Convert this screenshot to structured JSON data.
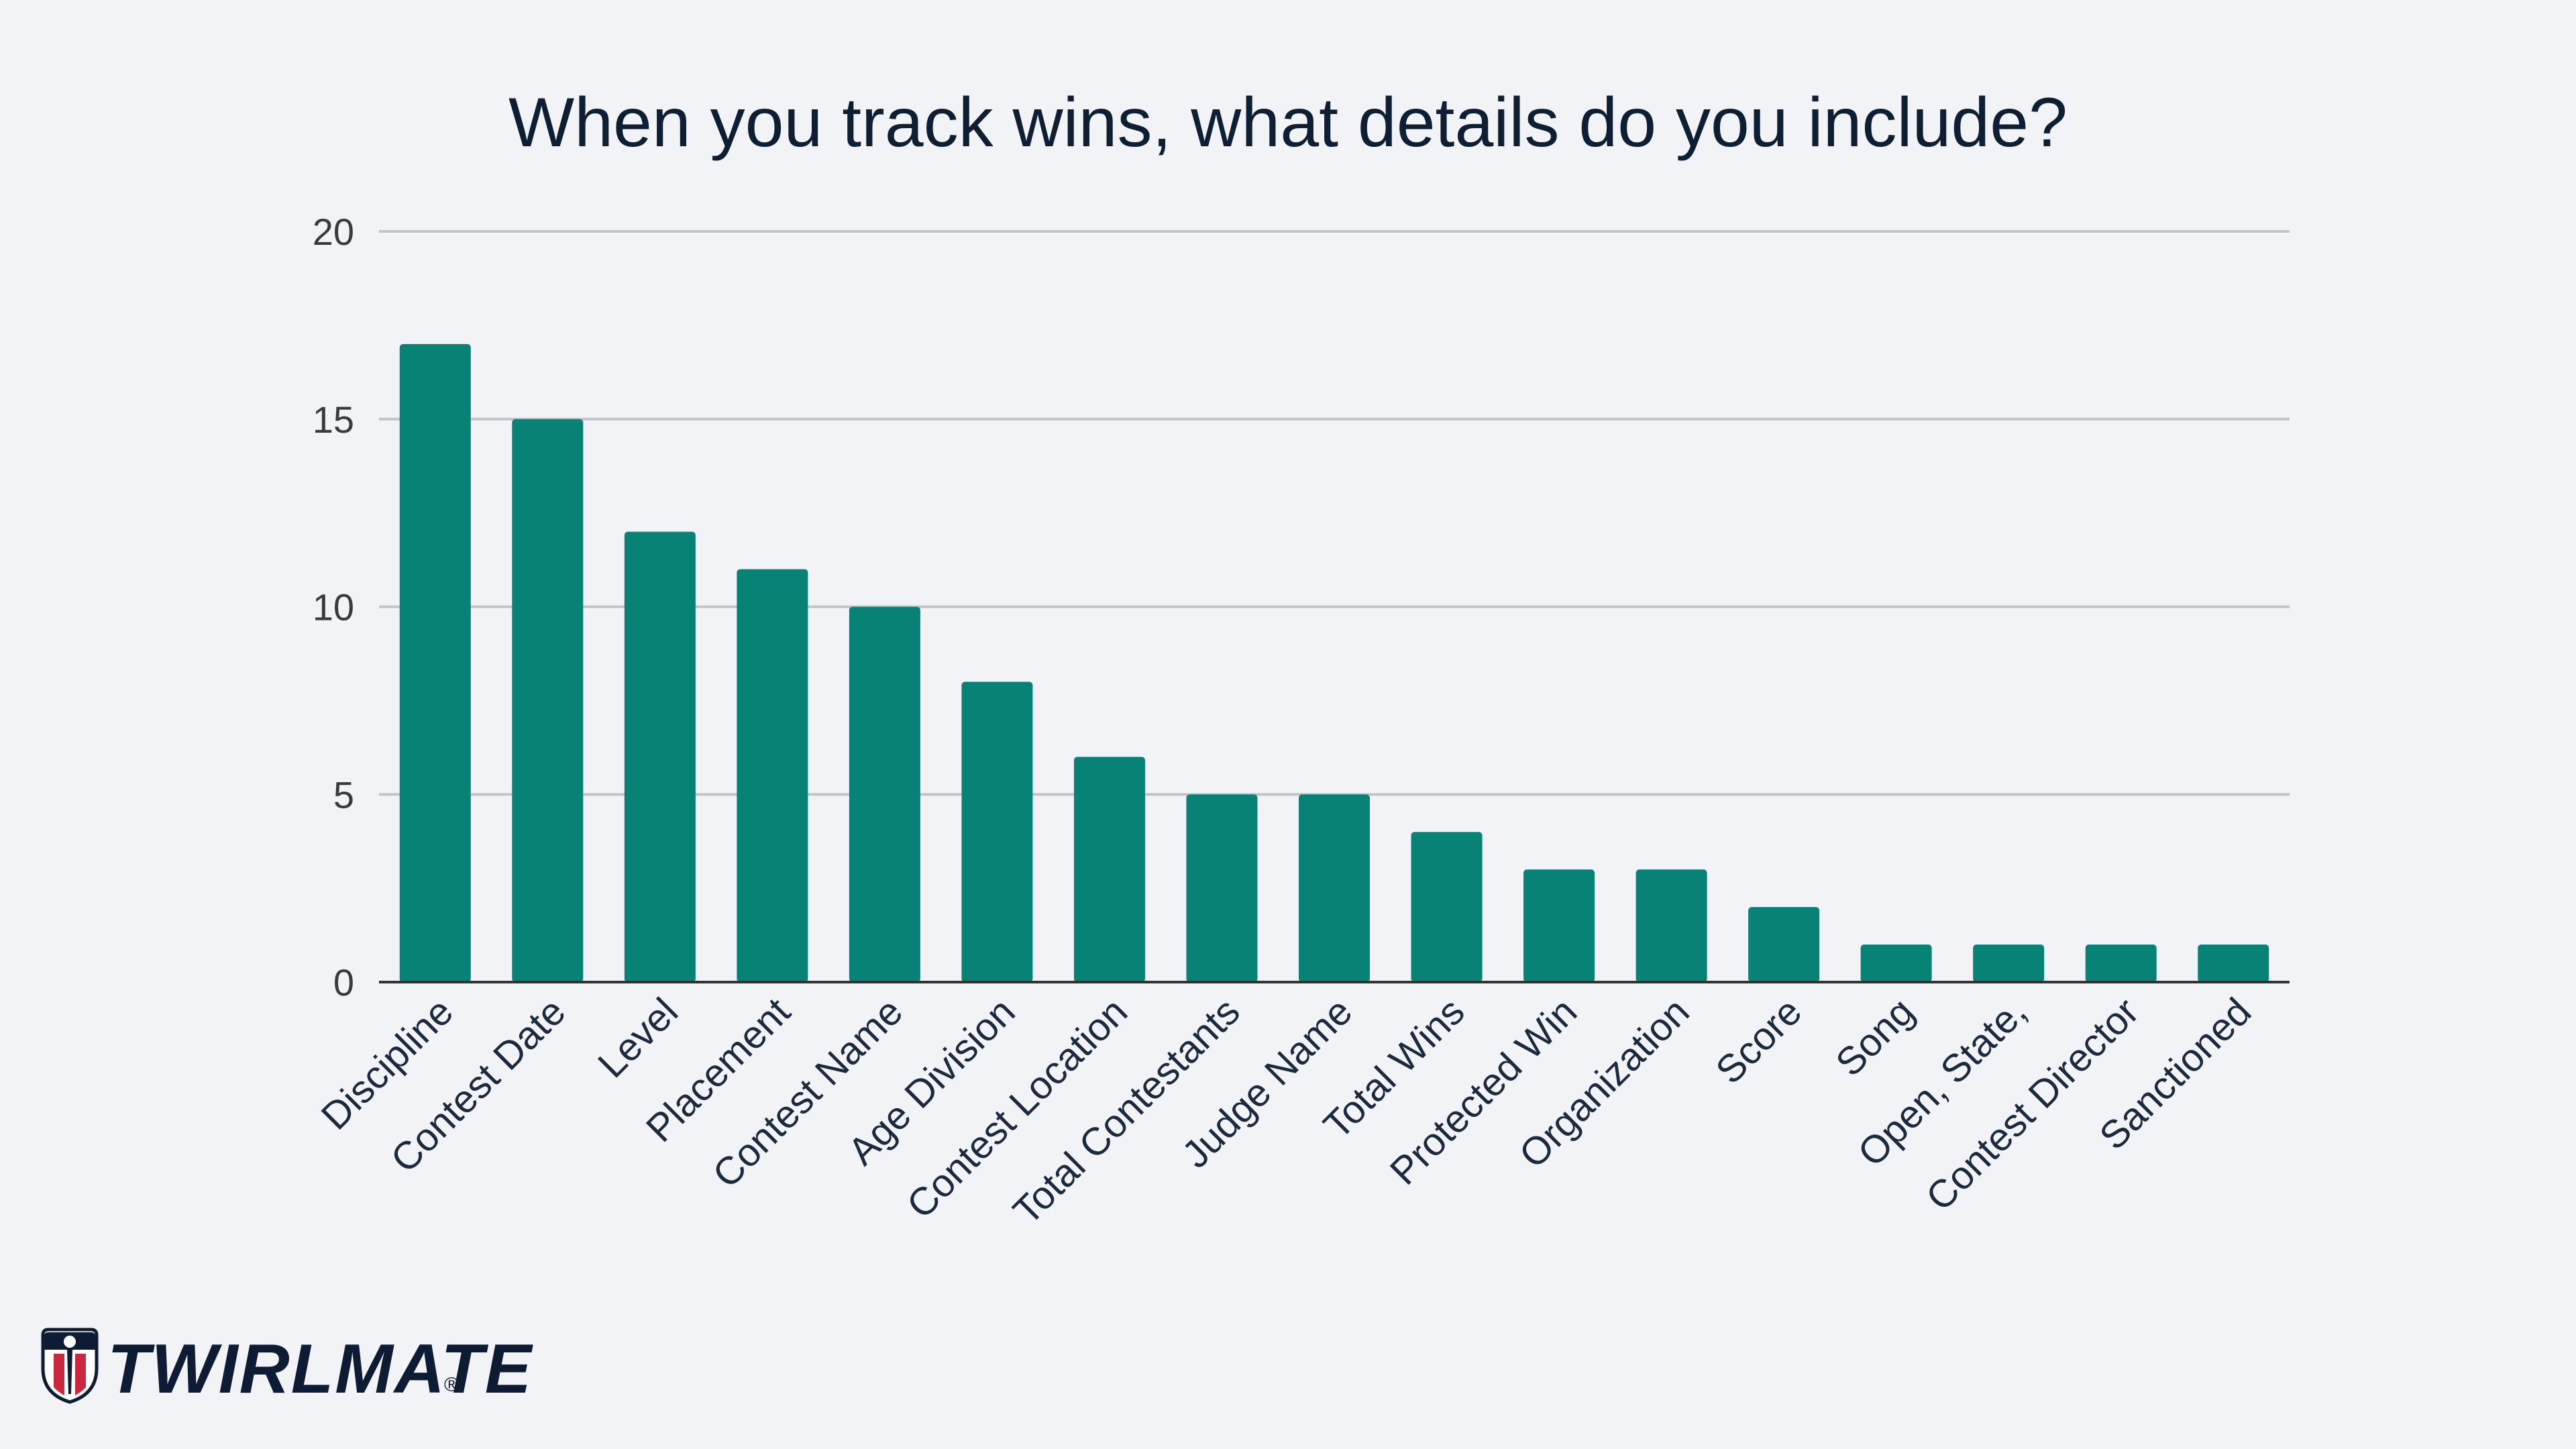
{
  "chart_data": {
    "type": "bar",
    "title": "When you track wins, what details do you include?",
    "xlabel": "",
    "ylabel": "",
    "ylim": [
      0,
      20
    ],
    "yticks": [
      0,
      5,
      10,
      15,
      20
    ],
    "grid": true,
    "legend": "none",
    "categories": [
      "Discipline",
      "Contest Date",
      "Level",
      "Placement",
      "Contest Name",
      "Age Division",
      "Contest Location",
      "Total Contestants",
      "Judge Name",
      "Total Wins",
      "Protected Win",
      "Organization",
      "Score",
      "Song",
      "Open, State,",
      "Contest Director",
      "Sanctioned"
    ],
    "values": [
      17,
      15,
      12,
      11,
      10,
      8,
      6,
      5,
      5,
      4,
      3,
      3,
      2,
      1,
      1,
      1,
      1
    ],
    "colors": {
      "bar": "#078275",
      "grid": "#c2c4c8",
      "axis": "#333333"
    }
  },
  "brand": {
    "name": "TWIRLMATE",
    "registered": "®",
    "logo_icon": "shield-baton-icon"
  }
}
